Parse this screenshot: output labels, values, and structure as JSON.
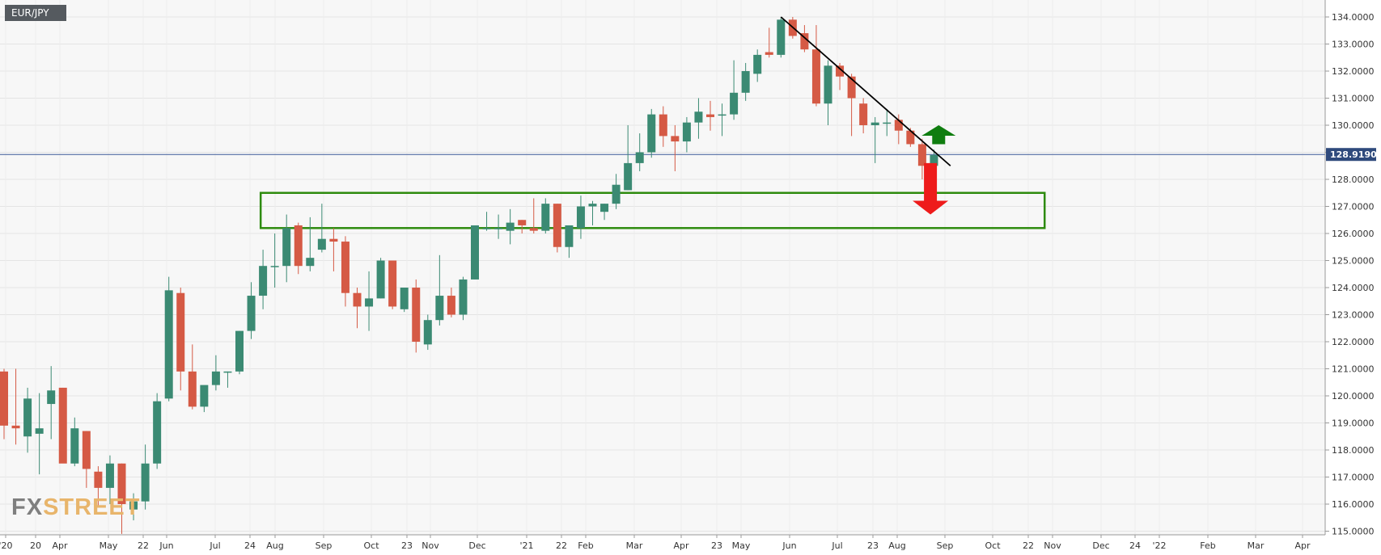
{
  "symbol": "EUR/JPY",
  "watermark": {
    "part1": "FX",
    "part2": "STREET"
  },
  "chart_data": {
    "type": "candlestick",
    "title": "EUR/JPY",
    "timeframe": "weekly",
    "ylim": [
      114.9,
      134.6
    ],
    "y_ticks": [
      "134.0000",
      "133.0000",
      "132.0000",
      "131.0000",
      "130.0000",
      "129.0000",
      "128.0000",
      "127.0000",
      "126.0000",
      "125.0000",
      "124.0000",
      "123.0000",
      "122.0000",
      "121.0000",
      "120.0000",
      "119.0000",
      "118.0000",
      "117.0000",
      "116.0000",
      "115.0000"
    ],
    "current_price": "128.9190",
    "x_ticks": [
      "'20",
      "20",
      "Apr",
      "May",
      "22",
      "Jun",
      "Jul",
      "24",
      "Aug",
      "Sep",
      "Oct",
      "23",
      "Nov",
      "Dec",
      "'21",
      "22",
      "Feb",
      "Mar",
      "Apr",
      "23",
      "May",
      "Jun",
      "Jul",
      "23",
      "Aug",
      "Sep",
      "Oct",
      "22",
      "Nov",
      "Dec",
      "24",
      "'22",
      "Feb",
      "Mar",
      "Apr"
    ],
    "colors": {
      "up": "#3b8a73",
      "down": "#d55a45",
      "zone": "#2e8b0e",
      "arrow_up": "#0f7d0f",
      "arrow_down": "#ee1b1b",
      "price_line": "#3d5a98",
      "trendline": "#000000"
    },
    "candles": [
      {
        "o": 120.9,
        "h": 121.0,
        "l": 118.4,
        "c": 118.9
      },
      {
        "o": 118.9,
        "h": 121.0,
        "l": 118.2,
        "c": 118.8
      },
      {
        "o": 118.5,
        "h": 120.3,
        "l": 117.9,
        "c": 119.9
      },
      {
        "o": 118.6,
        "h": 120.1,
        "l": 117.1,
        "c": 118.8
      },
      {
        "o": 119.7,
        "h": 121.1,
        "l": 118.4,
        "c": 120.2
      },
      {
        "o": 120.3,
        "h": 120.3,
        "l": 117.6,
        "c": 117.5
      },
      {
        "o": 117.5,
        "h": 119.2,
        "l": 117.4,
        "c": 118.8
      },
      {
        "o": 118.7,
        "h": 118.7,
        "l": 116.6,
        "c": 117.3
      },
      {
        "o": 117.2,
        "h": 117.4,
        "l": 115.9,
        "c": 116.6
      },
      {
        "o": 116.6,
        "h": 117.8,
        "l": 116.0,
        "c": 117.5
      },
      {
        "o": 117.5,
        "h": 117.5,
        "l": 114.9,
        "c": 116.0
      },
      {
        "o": 115.8,
        "h": 116.4,
        "l": 115.4,
        "c": 116.1
      },
      {
        "o": 116.1,
        "h": 118.2,
        "l": 115.8,
        "c": 117.5
      },
      {
        "o": 117.5,
        "h": 120.1,
        "l": 117.3,
        "c": 119.8
      },
      {
        "o": 119.9,
        "h": 124.4,
        "l": 119.8,
        "c": 123.9
      },
      {
        "o": 123.8,
        "h": 124.0,
        "l": 120.2,
        "c": 120.9
      },
      {
        "o": 120.9,
        "h": 121.9,
        "l": 119.5,
        "c": 119.6
      },
      {
        "o": 119.6,
        "h": 120.3,
        "l": 119.4,
        "c": 120.4
      },
      {
        "o": 120.4,
        "h": 121.5,
        "l": 120.2,
        "c": 120.9
      },
      {
        "o": 120.9,
        "h": 120.9,
        "l": 120.3,
        "c": 120.9
      },
      {
        "o": 120.9,
        "h": 122.4,
        "l": 120.8,
        "c": 122.4
      },
      {
        "o": 122.4,
        "h": 124.2,
        "l": 122.1,
        "c": 123.7
      },
      {
        "o": 123.7,
        "h": 125.4,
        "l": 123.2,
        "c": 124.8
      },
      {
        "o": 124.8,
        "h": 126.0,
        "l": 124.0,
        "c": 124.8
      },
      {
        "o": 124.8,
        "h": 126.7,
        "l": 124.2,
        "c": 126.2
      },
      {
        "o": 126.3,
        "h": 126.4,
        "l": 124.5,
        "c": 124.8
      },
      {
        "o": 124.8,
        "h": 126.6,
        "l": 124.6,
        "c": 125.1
      },
      {
        "o": 125.4,
        "h": 127.1,
        "l": 125.3,
        "c": 125.8
      },
      {
        "o": 125.8,
        "h": 126.2,
        "l": 124.6,
        "c": 125.7
      },
      {
        "o": 125.7,
        "h": 125.9,
        "l": 123.3,
        "c": 123.8
      },
      {
        "o": 123.8,
        "h": 124.0,
        "l": 122.5,
        "c": 123.3
      },
      {
        "o": 123.3,
        "h": 124.6,
        "l": 122.4,
        "c": 123.6
      },
      {
        "o": 123.6,
        "h": 125.1,
        "l": 123.6,
        "c": 125.0
      },
      {
        "o": 125.0,
        "h": 125.0,
        "l": 123.2,
        "c": 123.3
      },
      {
        "o": 123.2,
        "h": 124.0,
        "l": 123.1,
        "c": 124.0
      },
      {
        "o": 124.0,
        "h": 124.3,
        "l": 121.6,
        "c": 122.0
      },
      {
        "o": 121.9,
        "h": 123.0,
        "l": 121.7,
        "c": 122.8
      },
      {
        "o": 122.8,
        "h": 125.2,
        "l": 122.6,
        "c": 123.7
      },
      {
        "o": 123.7,
        "h": 124.0,
        "l": 122.9,
        "c": 123.0
      },
      {
        "o": 123.0,
        "h": 124.4,
        "l": 122.8,
        "c": 124.3
      },
      {
        "o": 124.3,
        "h": 126.3,
        "l": 124.3,
        "c": 126.3
      },
      {
        "o": 126.2,
        "h": 126.8,
        "l": 126.1,
        "c": 126.2
      },
      {
        "o": 126.2,
        "h": 126.7,
        "l": 125.8,
        "c": 126.2
      },
      {
        "o": 126.1,
        "h": 126.9,
        "l": 125.6,
        "c": 126.4
      },
      {
        "o": 126.5,
        "h": 126.5,
        "l": 126.0,
        "c": 126.3
      },
      {
        "o": 126.2,
        "h": 127.3,
        "l": 126.0,
        "c": 126.1
      },
      {
        "o": 126.1,
        "h": 127.3,
        "l": 126.0,
        "c": 127.1
      },
      {
        "o": 127.1,
        "h": 127.1,
        "l": 125.3,
        "c": 125.5
      },
      {
        "o": 125.5,
        "h": 126.3,
        "l": 125.1,
        "c": 126.3
      },
      {
        "o": 126.2,
        "h": 127.4,
        "l": 125.8,
        "c": 127.0
      },
      {
        "o": 127.0,
        "h": 127.2,
        "l": 126.3,
        "c": 127.1
      },
      {
        "o": 126.8,
        "h": 127.1,
        "l": 126.5,
        "c": 127.1
      },
      {
        "o": 127.1,
        "h": 128.2,
        "l": 126.9,
        "c": 127.8
      },
      {
        "o": 127.6,
        "h": 130.0,
        "l": 127.6,
        "c": 128.6
      },
      {
        "o": 128.6,
        "h": 129.7,
        "l": 128.3,
        "c": 129.0
      },
      {
        "o": 129.0,
        "h": 130.6,
        "l": 128.8,
        "c": 130.4
      },
      {
        "o": 130.4,
        "h": 130.7,
        "l": 129.2,
        "c": 129.6
      },
      {
        "o": 129.6,
        "h": 130.0,
        "l": 128.3,
        "c": 129.4
      },
      {
        "o": 129.4,
        "h": 130.3,
        "l": 129.0,
        "c": 130.1
      },
      {
        "o": 130.1,
        "h": 131.0,
        "l": 129.5,
        "c": 130.5
      },
      {
        "o": 130.4,
        "h": 130.9,
        "l": 129.8,
        "c": 130.3
      },
      {
        "o": 130.4,
        "h": 130.8,
        "l": 129.6,
        "c": 130.4
      },
      {
        "o": 130.4,
        "h": 132.4,
        "l": 130.2,
        "c": 131.2
      },
      {
        "o": 131.2,
        "h": 132.3,
        "l": 130.9,
        "c": 132.0
      },
      {
        "o": 131.9,
        "h": 132.8,
        "l": 131.6,
        "c": 132.6
      },
      {
        "o": 132.7,
        "h": 133.6,
        "l": 132.5,
        "c": 132.6
      },
      {
        "o": 132.6,
        "h": 134.0,
        "l": 132.5,
        "c": 133.9
      },
      {
        "o": 133.9,
        "h": 134.0,
        "l": 133.2,
        "c": 133.3
      },
      {
        "o": 133.4,
        "h": 133.7,
        "l": 132.7,
        "c": 132.8
      },
      {
        "o": 132.8,
        "h": 133.7,
        "l": 130.7,
        "c": 130.8
      },
      {
        "o": 130.8,
        "h": 132.4,
        "l": 130.0,
        "c": 132.2
      },
      {
        "o": 132.2,
        "h": 132.3,
        "l": 131.3,
        "c": 131.8
      },
      {
        "o": 131.8,
        "h": 131.9,
        "l": 129.6,
        "c": 131.0
      },
      {
        "o": 130.8,
        "h": 131.0,
        "l": 129.7,
        "c": 130.0
      },
      {
        "o": 130.0,
        "h": 130.3,
        "l": 128.6,
        "c": 130.1
      },
      {
        "o": 130.1,
        "h": 130.6,
        "l": 129.6,
        "c": 130.1
      },
      {
        "o": 130.2,
        "h": 130.4,
        "l": 129.3,
        "c": 129.8
      },
      {
        "o": 129.8,
        "h": 129.9,
        "l": 129.2,
        "c": 129.3
      },
      {
        "o": 129.3,
        "h": 129.5,
        "l": 128.0,
        "c": 128.5
      },
      {
        "o": 128.5,
        "h": 129.1,
        "l": 128.2,
        "c": 128.9
      }
    ],
    "annotations": {
      "trendline": [
        {
          "candle": 66,
          "price": 134.0
        },
        {
          "candle": 80.4,
          "price": 128.5
        }
      ],
      "zone": {
        "from_candle": 21.8,
        "to_candle": 88.4,
        "top": 127.5,
        "bottom": 126.2
      },
      "arrow_up": {
        "candle": 79.4,
        "tip": 130.0,
        "base": 129.3
      },
      "arrow_down": {
        "candle": 78.7,
        "top": 128.6,
        "tip": 126.7
      }
    }
  }
}
